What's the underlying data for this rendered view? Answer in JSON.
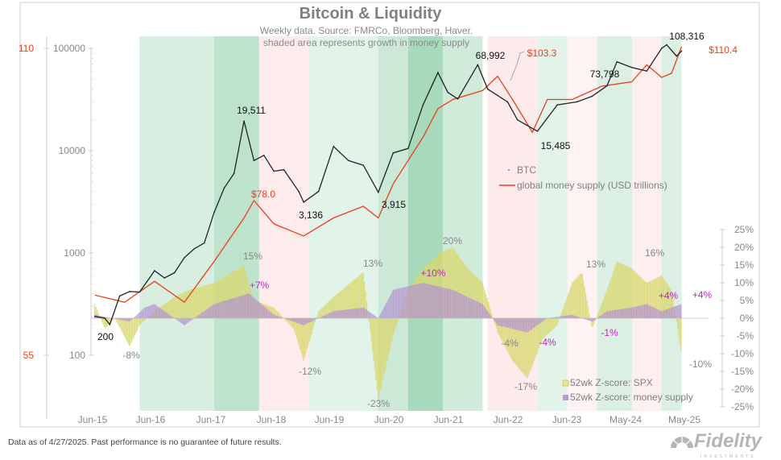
{
  "chart_data": {
    "type": "line",
    "title": "Bitcoin & Liquidity",
    "subtitle": "Weekly data.  Source: FMRCo, Bloomberg, Haver.",
    "note": "shaded area represents growth in money supply",
    "x_ticks": [
      "Jun-15",
      "Jun-16",
      "Jun-17",
      "Jun-18",
      "Jun-19",
      "Jun-20",
      "Jun-21",
      "Jun-22",
      "Jun-23",
      "May-24",
      "May-25"
    ],
    "y_left_outer": {
      "scale": "log",
      "ticks": [
        "110",
        "55"
      ],
      "range": [
        55,
        110
      ],
      "color": "#e8401c"
    },
    "y_left": {
      "scale": "log",
      "ticks": [
        "100000",
        "10000",
        "1000",
        "100"
      ],
      "range": [
        100,
        100000
      ]
    },
    "y_right": {
      "scale": "linear",
      "ticks": [
        "25%",
        "20%",
        "15%",
        "10%",
        "5%",
        "0%",
        "-5%",
        "-10%",
        "-15%",
        "-20%",
        "-25%"
      ],
      "range": [
        -25,
        25
      ]
    },
    "legend": [
      {
        "name": "BTC",
        "color": "#222222"
      },
      {
        "name": "global money supply (USD trillions)",
        "color": "#e8401c"
      },
      {
        "name": "52wk Z-score: SPX",
        "color": "#d4d46a"
      },
      {
        "name": "52wk Z-score: money supply",
        "color": "#b99ad6"
      }
    ],
    "series": [
      {
        "name": "BTC",
        "axis": "left",
        "points": [
          [
            "2015-06",
            240
          ],
          [
            "2015-08",
            230
          ],
          [
            "2015-09",
            200
          ],
          [
            "2015-11",
            380
          ],
          [
            "2016-01",
            420
          ],
          [
            "2016-03",
            415
          ],
          [
            "2016-06",
            670
          ],
          [
            "2016-08",
            570
          ],
          [
            "2016-10",
            640
          ],
          [
            "2016-12",
            900
          ],
          [
            "2017-02",
            1100
          ],
          [
            "2017-04",
            1250
          ],
          [
            "2017-06",
            2500
          ],
          [
            "2017-08",
            4300
          ],
          [
            "2017-10",
            6000
          ],
          [
            "2017-12",
            19511
          ],
          [
            "2018-02",
            8000
          ],
          [
            "2018-04",
            9000
          ],
          [
            "2018-06",
            6300
          ],
          [
            "2018-08",
            6500
          ],
          [
            "2018-11",
            4000
          ],
          [
            "2018-12",
            3136
          ],
          [
            "2019-03",
            4000
          ],
          [
            "2019-06",
            11000
          ],
          [
            "2019-09",
            8000
          ],
          [
            "2019-12",
            7200
          ],
          [
            "2020-03",
            3915
          ],
          [
            "2020-06",
            9500
          ],
          [
            "2020-09",
            10500
          ],
          [
            "2020-12",
            28000
          ],
          [
            "2021-03",
            58000
          ],
          [
            "2021-05",
            37000
          ],
          [
            "2021-07",
            32000
          ],
          [
            "2021-11",
            68992
          ],
          [
            "2022-01",
            40000
          ],
          [
            "2022-05",
            30000
          ],
          [
            "2022-07",
            20000
          ],
          [
            "2022-11",
            15485
          ],
          [
            "2023-03",
            28000
          ],
          [
            "2023-07",
            30000
          ],
          [
            "2023-10",
            34000
          ],
          [
            "2024-01",
            43000
          ],
          [
            "2024-03",
            73798
          ],
          [
            "2024-06",
            65000
          ],
          [
            "2024-09",
            60000
          ],
          [
            "2024-12",
            100000
          ],
          [
            "2025-01",
            108316
          ],
          [
            "2025-03",
            84000
          ],
          [
            "2025-04",
            94000
          ]
        ]
      },
      {
        "name": "global money supply (USD trillions)",
        "axis": "left_outer",
        "points": [
          [
            "2015-06",
            63
          ],
          [
            "2015-12",
            62
          ],
          [
            "2016-06",
            65
          ],
          [
            "2016-12",
            62
          ],
          [
            "2017-06",
            68
          ],
          [
            "2017-12",
            75
          ],
          [
            "2018-02",
            78
          ],
          [
            "2018-06",
            74
          ],
          [
            "2018-12",
            72
          ],
          [
            "2019-06",
            75
          ],
          [
            "2019-12",
            77
          ],
          [
            "2020-03",
            75
          ],
          [
            "2020-06",
            81
          ],
          [
            "2020-12",
            90
          ],
          [
            "2021-03",
            96
          ],
          [
            "2021-06",
            98
          ],
          [
            "2021-12",
            100
          ],
          [
            "2022-03",
            103.3
          ],
          [
            "2022-06",
            98
          ],
          [
            "2022-10",
            91
          ],
          [
            "2023-01",
            98
          ],
          [
            "2023-06",
            98
          ],
          [
            "2023-12",
            101
          ],
          [
            "2024-06",
            102
          ],
          [
            "2024-09",
            106
          ],
          [
            "2024-12",
            103
          ],
          [
            "2025-02",
            104
          ],
          [
            "2025-04",
            110.4
          ]
        ]
      },
      {
        "name": "52wk Z-score: SPX",
        "axis": "right",
        "type": "bar",
        "points": [
          [
            "2015-06",
            4
          ],
          [
            "2015-08",
            -3
          ],
          [
            "2015-10",
            0
          ],
          [
            "2016-01",
            -8
          ],
          [
            "2016-03",
            -2
          ],
          [
            "2016-06",
            2
          ],
          [
            "2016-10",
            6
          ],
          [
            "2017-01",
            8
          ],
          [
            "2017-06",
            10
          ],
          [
            "2017-12",
            15
          ],
          [
            "2018-02",
            5
          ],
          [
            "2018-06",
            3
          ],
          [
            "2018-10",
            -3
          ],
          [
            "2018-12",
            -12
          ],
          [
            "2019-03",
            2
          ],
          [
            "2019-06",
            6
          ],
          [
            "2019-12",
            13
          ],
          [
            "2020-03",
            -23
          ],
          [
            "2020-06",
            -5
          ],
          [
            "2020-09",
            8
          ],
          [
            "2020-12",
            14
          ],
          [
            "2021-03",
            18
          ],
          [
            "2021-06",
            20
          ],
          [
            "2021-09",
            14
          ],
          [
            "2021-12",
            10
          ],
          [
            "2022-03",
            -4
          ],
          [
            "2022-06",
            -12
          ],
          [
            "2022-09",
            -17
          ],
          [
            "2022-12",
            -6
          ],
          [
            "2023-03",
            -2
          ],
          [
            "2023-06",
            10
          ],
          [
            "2023-08",
            13
          ],
          [
            "2023-10",
            -3
          ],
          [
            "2024-01",
            8
          ],
          [
            "2024-03",
            16
          ],
          [
            "2024-06",
            14
          ],
          [
            "2024-09",
            10
          ],
          [
            "2024-12",
            12
          ],
          [
            "2025-02",
            8
          ],
          [
            "2025-04",
            -10
          ]
        ]
      },
      {
        "name": "52wk Z-score: money supply",
        "axis": "right",
        "type": "bar",
        "points": [
          [
            "2015-06",
            1
          ],
          [
            "2016-01",
            -1
          ],
          [
            "2016-04",
            3
          ],
          [
            "2016-06",
            4
          ],
          [
            "2016-12",
            -2
          ],
          [
            "2017-06",
            4
          ],
          [
            "2018-01",
            7
          ],
          [
            "2018-06",
            1
          ],
          [
            "2018-12",
            -2
          ],
          [
            "2019-06",
            2
          ],
          [
            "2019-12",
            3
          ],
          [
            "2020-03",
            0
          ],
          [
            "2020-06",
            8
          ],
          [
            "2020-12",
            10
          ],
          [
            "2021-06",
            8
          ],
          [
            "2021-12",
            4
          ],
          [
            "2022-03",
            -2
          ],
          [
            "2022-09",
            -4
          ],
          [
            "2023-01",
            0
          ],
          [
            "2023-06",
            1
          ],
          [
            "2023-10",
            -1
          ],
          [
            "2024-01",
            2
          ],
          [
            "2024-06",
            3
          ],
          [
            "2024-09",
            4
          ],
          [
            "2024-12",
            2
          ],
          [
            "2025-04",
            4
          ]
        ]
      }
    ],
    "shading": [
      {
        "from": "2016-03",
        "to": "2017-06",
        "kind": "growth",
        "strength": 0.35
      },
      {
        "from": "2017-06",
        "to": "2018-03",
        "kind": "growth",
        "strength": 0.7
      },
      {
        "from": "2018-03",
        "to": "2019-01",
        "kind": "decline",
        "strength": 0.5
      },
      {
        "from": "2019-01",
        "to": "2020-03",
        "kind": "growth",
        "strength": 0.2
      },
      {
        "from": "2020-03",
        "to": "2020-09",
        "kind": "growth",
        "strength": 0.5
      },
      {
        "from": "2020-09",
        "to": "2021-04",
        "kind": "growth",
        "strength": 1.0
      },
      {
        "from": "2021-04",
        "to": "2021-12",
        "kind": "growth",
        "strength": 0.45
      },
      {
        "from": "2022-01",
        "to": "2022-11",
        "kind": "decline",
        "strength": 0.6
      },
      {
        "from": "2022-11",
        "to": "2023-05",
        "kind": "growth",
        "strength": 0.2
      },
      {
        "from": "2023-05",
        "to": "2023-11",
        "kind": "decline",
        "strength": 0.25
      },
      {
        "from": "2023-11",
        "to": "2024-06",
        "kind": "growth",
        "strength": 0.3
      },
      {
        "from": "2024-06",
        "to": "2024-12",
        "kind": "decline",
        "strength": 0.4
      },
      {
        "from": "2024-12",
        "to": "2025-04",
        "kind": "growth",
        "strength": 0.3
      }
    ],
    "annotations": [
      {
        "text": "19,511",
        "series": "BTC"
      },
      {
        "text": "3,136",
        "series": "BTC"
      },
      {
        "text": "3,915",
        "series": "BTC"
      },
      {
        "text": "68,992",
        "series": "BTC"
      },
      {
        "text": "15,485",
        "series": "BTC"
      },
      {
        "text": "73,798",
        "series": "BTC"
      },
      {
        "text": "108,316",
        "series": "BTC"
      },
      {
        "text": "200",
        "series": "BTC"
      },
      {
        "text": "$78.0",
        "series": "money"
      },
      {
        "text": "$103.3",
        "series": "money"
      },
      {
        "text": "$110.4",
        "series": "money"
      },
      {
        "text": "15%",
        "series": "spx"
      },
      {
        "text": "-8%",
        "series": "spx"
      },
      {
        "text": "-12%",
        "series": "spx"
      },
      {
        "text": "13%",
        "series": "spx"
      },
      {
        "text": "-23%",
        "series": "spx"
      },
      {
        "text": "20%",
        "series": "spx"
      },
      {
        "text": "-4%",
        "series": "spx"
      },
      {
        "text": "-17%",
        "series": "spx"
      },
      {
        "text": "13%",
        "series": "spx"
      },
      {
        "text": "16%",
        "series": "spx"
      },
      {
        "text": "-10%",
        "series": "spx"
      },
      {
        "text": "+7%",
        "series": "ms"
      },
      {
        "text": "+10%",
        "series": "ms"
      },
      {
        "text": "-4%",
        "series": "ms"
      },
      {
        "text": "-1%",
        "series": "ms"
      },
      {
        "text": "+4%",
        "series": "ms"
      },
      {
        "text": "+4%",
        "series": "ms"
      }
    ]
  },
  "footer": {
    "disclaimer": "Data as of 4/27/2025. Past performance is no guarantee of future results."
  },
  "logo": {
    "name": "Fidelity",
    "sub": "INVESTMENTS"
  }
}
